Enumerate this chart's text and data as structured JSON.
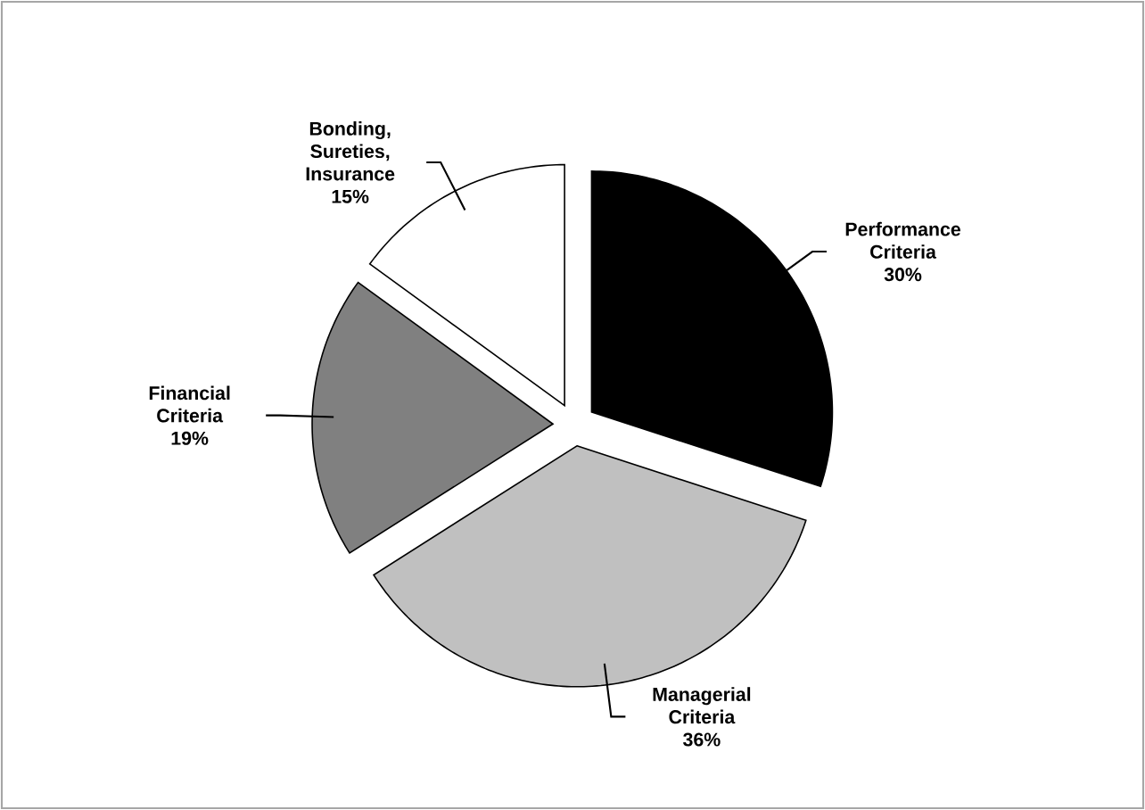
{
  "chart_data": {
    "type": "pie",
    "categories": [
      "Performance Criteria",
      "Managerial Criteria",
      "Financial Criteria",
      "Bonding, Sureties, Insurance"
    ],
    "values": [
      30,
      36,
      19,
      15
    ],
    "value_labels": [
      "30%",
      "36%",
      "19%",
      "15%"
    ],
    "colors": [
      "#000000",
      "#c0c0c0",
      "#808080",
      "#ffffff"
    ]
  }
}
